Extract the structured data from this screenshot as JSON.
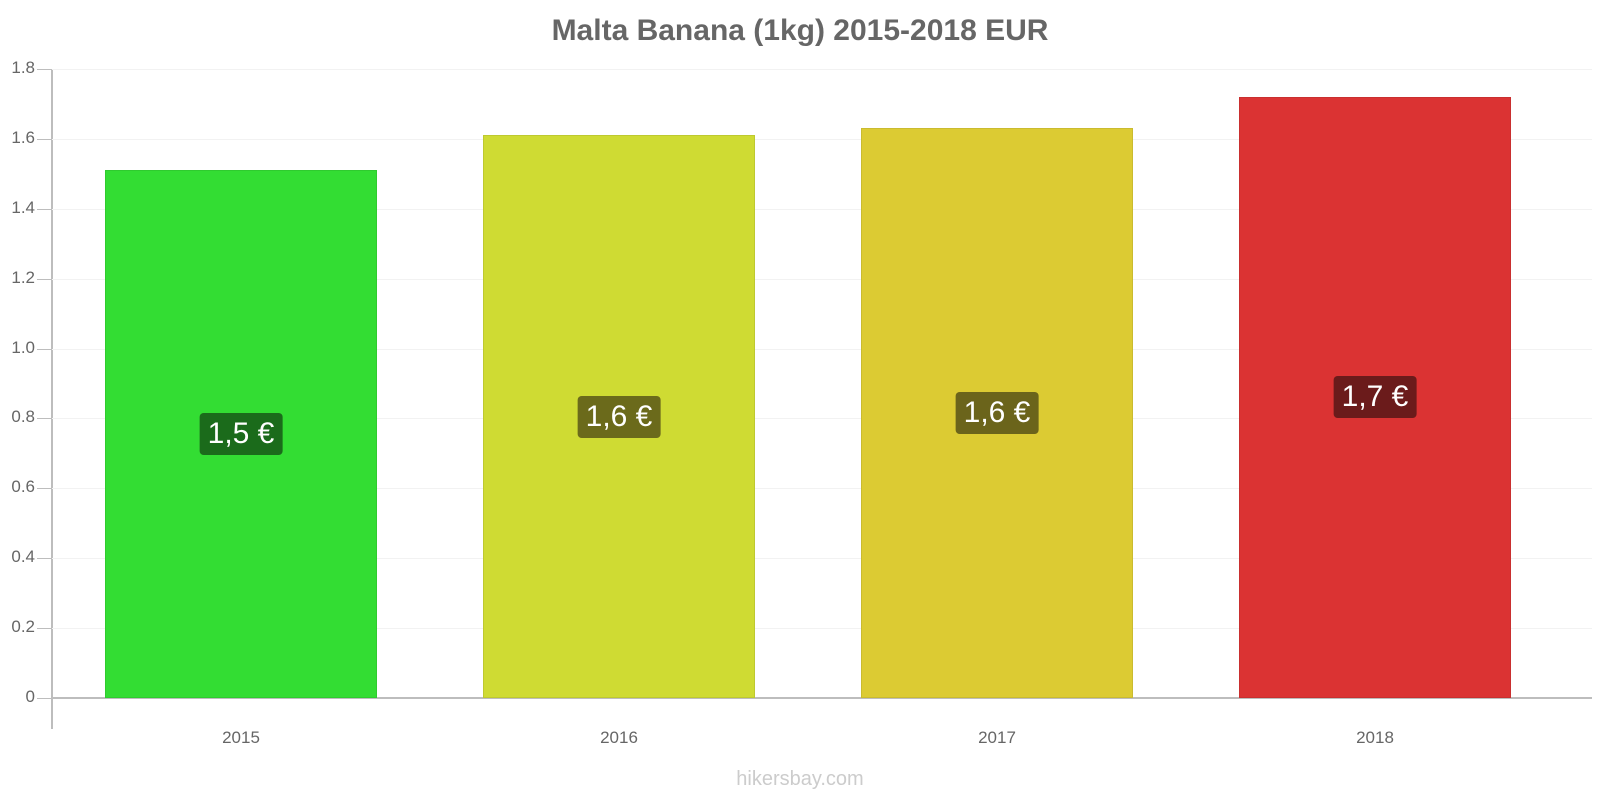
{
  "title": "Malta Banana (1kg) 2015-2018 EUR",
  "footer": "hikersbay.com",
  "chart_data": {
    "type": "bar",
    "title": "Malta Banana (1kg) 2015-2018 EUR",
    "xlabel": "",
    "ylabel": "",
    "categories": [
      "2015",
      "2016",
      "2017",
      "2018"
    ],
    "values": [
      1.51,
      1.61,
      1.63,
      1.72
    ],
    "value_labels": [
      "1,5 €",
      "1,6 €",
      "1,6 €",
      "1,7 €"
    ],
    "ylim": [
      0,
      1.8
    ],
    "yticks": [
      "0",
      "0.2",
      "0.4",
      "0.6",
      "0.8",
      "1.0",
      "1.2",
      "1.4",
      "1.6",
      "1.8"
    ],
    "grid": true,
    "legend": null,
    "bar_colors": [
      "#33dd33",
      "#cfdb33",
      "#dccb33",
      "#db3333"
    ],
    "label_colors": [
      "#1b6b1b",
      "#6b6a1b",
      "#6b641b",
      "#6b1b1b"
    ]
  }
}
